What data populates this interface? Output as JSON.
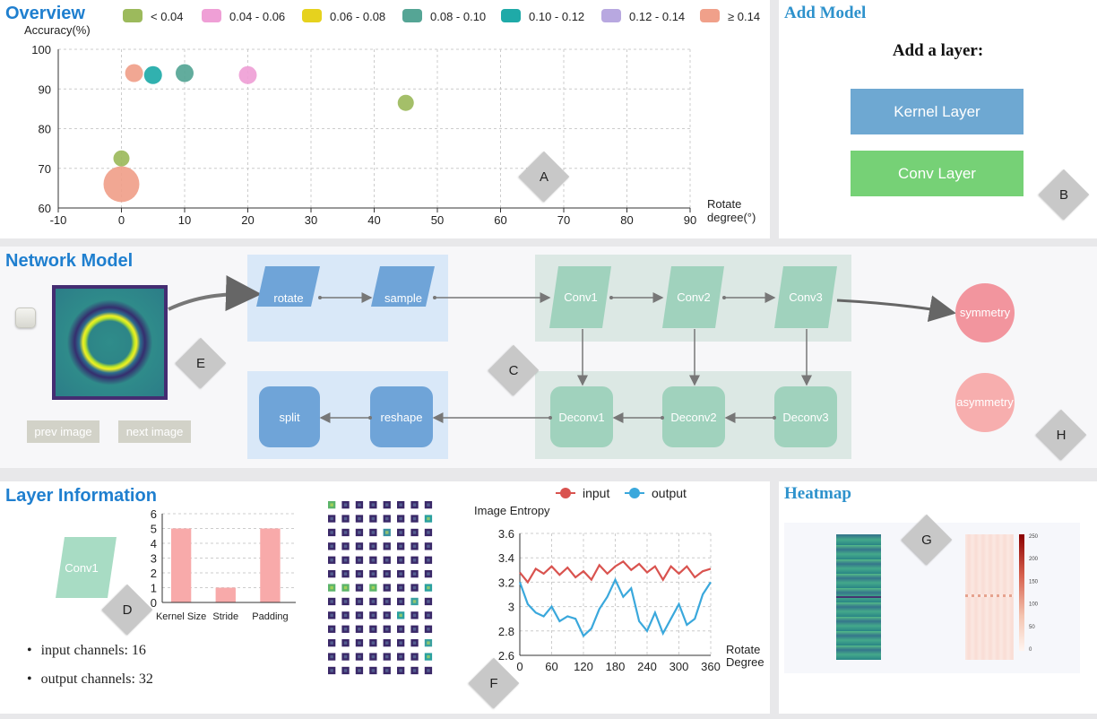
{
  "overview": {
    "title": "Overview",
    "diamond": "A",
    "legend": [
      {
        "label": "< 0.04",
        "color": "#9cba5c"
      },
      {
        "label": "0.04 - 0.06",
        "color": "#ef9fd6"
      },
      {
        "label": "0.06 - 0.08",
        "color": "#e6d21e"
      },
      {
        "label": "0.08 - 0.10",
        "color": "#55a595"
      },
      {
        "label": "0.10 - 0.12",
        "color": "#1faaa8"
      },
      {
        "label": "0.12 - 0.14",
        "color": "#b8a8e0"
      },
      {
        "label": "≥ 0.14",
        "color": "#f0a08a"
      }
    ]
  },
  "add_model": {
    "title": "Add Model",
    "subtitle": "Add a layer:",
    "kernel_button": "Kernel Layer",
    "conv_button": "Conv Layer",
    "diamond": "B",
    "kernel_color": "#6ea8d2",
    "conv_color": "#76d176"
  },
  "network": {
    "title": "Network Model",
    "nodes": {
      "rotate": "rotate",
      "sample": "sample",
      "conv1": "Conv1",
      "conv2": "Conv2",
      "conv3": "Conv3",
      "deconv1": "Deconv1",
      "deconv2": "Deconv2",
      "deconv3": "Deconv3",
      "reshape": "reshape",
      "split": "split",
      "symmetry": "symmetry",
      "asymmetry": "asymmetry"
    },
    "prev_button": "prev image",
    "next_button": "next image",
    "diamond_c": "C",
    "diamond_e": "E",
    "diamond_h": "H"
  },
  "layer_info": {
    "title": "Layer Information",
    "layer_name": "Conv1",
    "diamond_d": "D",
    "diamond_f": "F",
    "input_channels": "input channels: 16",
    "output_channels": "output channels: 32"
  },
  "heatmap": {
    "title": "Heatmap",
    "diamond": "G",
    "colorbar_ticks": [
      "250",
      "200",
      "150",
      "100",
      "50",
      "0"
    ]
  },
  "chart_data": [
    {
      "type": "scatter",
      "title": "",
      "xlabel": "Rotate degree(°)",
      "ylabel": "Accuracy(%)",
      "xlim": [
        -10,
        90
      ],
      "ylim": [
        60,
        100
      ],
      "xticks": [
        "-10",
        "0",
        "10",
        "20",
        "30",
        "40",
        "50",
        "60",
        "70",
        "80",
        "90"
      ],
      "yticks": [
        "60",
        "70",
        "80",
        "90",
        "100"
      ],
      "points": [
        {
          "x": 2,
          "y": 94,
          "color": "#f0a08a",
          "size": 10
        },
        {
          "x": 5,
          "y": 93.5,
          "color": "#1faaa8",
          "size": 10
        },
        {
          "x": 10,
          "y": 94,
          "color": "#55a595",
          "size": 10
        },
        {
          "x": 20,
          "y": 93.5,
          "color": "#ef9fd6",
          "size": 10
        },
        {
          "x": 45,
          "y": 86.5,
          "color": "#9cba5c",
          "size": 9
        },
        {
          "x": 0,
          "y": 72.5,
          "color": "#9cba5c",
          "size": 9
        },
        {
          "x": 0,
          "y": 66,
          "color": "#f0a08a",
          "size": 20
        }
      ]
    },
    {
      "type": "bar",
      "categories": [
        "Kernel Size",
        "Stride",
        "Padding"
      ],
      "values": [
        5,
        1,
        5
      ],
      "ylim": [
        0,
        6
      ],
      "yticks": [
        "0",
        "1",
        "2",
        "3",
        "4",
        "5",
        "6"
      ],
      "color": "#f8aaaa"
    },
    {
      "type": "line",
      "title": "Image Entropy",
      "xlabel": "Rotate Degree",
      "xlim": [
        0,
        360
      ],
      "ylim": [
        2.6,
        3.6
      ],
      "xticks": [
        "0",
        "60",
        "120",
        "180",
        "240",
        "300",
        "360"
      ],
      "yticks": [
        "2.6",
        "2.8",
        "3",
        "3.2",
        "3.4",
        "3.6"
      ],
      "series": [
        {
          "name": "input",
          "color": "#d9534f",
          "x": [
            0,
            15,
            30,
            45,
            60,
            75,
            90,
            105,
            120,
            135,
            150,
            165,
            180,
            195,
            210,
            225,
            240,
            255,
            270,
            285,
            300,
            315,
            330,
            345,
            360
          ],
          "values": [
            3.28,
            3.2,
            3.31,
            3.27,
            3.33,
            3.26,
            3.32,
            3.24,
            3.29,
            3.22,
            3.34,
            3.27,
            3.33,
            3.37,
            3.3,
            3.35,
            3.28,
            3.33,
            3.22,
            3.33,
            3.27,
            3.33,
            3.24,
            3.29,
            3.31
          ]
        },
        {
          "name": "output",
          "color": "#3aa8dc",
          "x": [
            0,
            15,
            30,
            45,
            60,
            75,
            90,
            105,
            120,
            135,
            150,
            165,
            180,
            195,
            210,
            225,
            240,
            255,
            270,
            285,
            300,
            315,
            330,
            345,
            360
          ],
          "values": [
            3.2,
            3.02,
            2.95,
            2.92,
            3.0,
            2.88,
            2.92,
            2.9,
            2.76,
            2.82,
            2.98,
            3.08,
            3.22,
            3.08,
            3.15,
            2.88,
            2.8,
            2.95,
            2.78,
            2.9,
            3.02,
            2.85,
            2.9,
            3.1,
            3.2
          ]
        }
      ]
    }
  ]
}
